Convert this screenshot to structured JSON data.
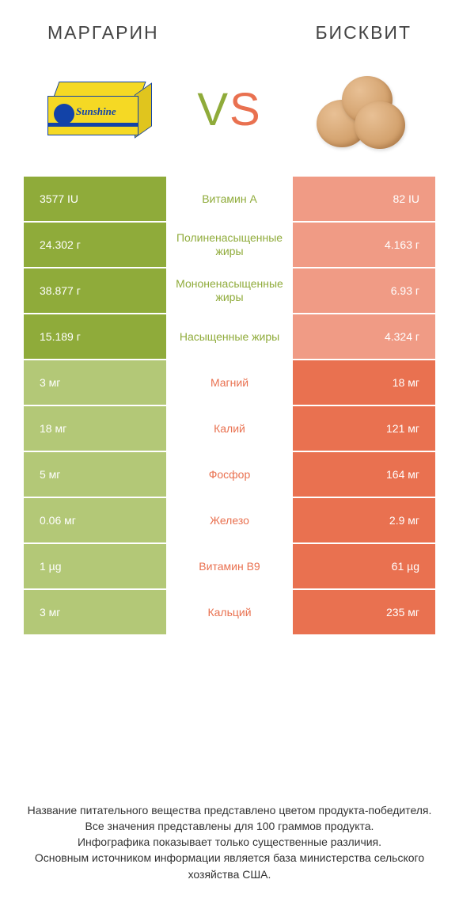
{
  "colors": {
    "green": "#8fab3a",
    "green_light": "#b3c877",
    "orange": "#e97150",
    "orange_light": "#f09b85",
    "label_green": "#8fab3a",
    "label_orange": "#e97150",
    "white": "#ffffff",
    "text": "#333333"
  },
  "header": {
    "left": "МАРГАРИН",
    "right": "БИСКВИТ"
  },
  "vs": {
    "v": "V",
    "s": "S"
  },
  "rows": [
    {
      "left": "3577 IU",
      "label": "Витамин A",
      "right": "82 IU",
      "winner": "left"
    },
    {
      "left": "24.302 г",
      "label": "Полиненасыщенные жиры",
      "right": "4.163 г",
      "winner": "left"
    },
    {
      "left": "38.877 г",
      "label": "Мононенасыщенные жиры",
      "right": "6.93 г",
      "winner": "left"
    },
    {
      "left": "15.189 г",
      "label": "Насыщенные жиры",
      "right": "4.324 г",
      "winner": "left"
    },
    {
      "left": "3 мг",
      "label": "Магний",
      "right": "18 мг",
      "winner": "right"
    },
    {
      "left": "18 мг",
      "label": "Калий",
      "right": "121 мг",
      "winner": "right"
    },
    {
      "left": "5 мг",
      "label": "Фосфор",
      "right": "164 мг",
      "winner": "right"
    },
    {
      "left": "0.06 мг",
      "label": "Железо",
      "right": "2.9 мг",
      "winner": "right"
    },
    {
      "left": "1 µg",
      "label": "Витамин B9",
      "right": "61 µg",
      "winner": "right"
    },
    {
      "left": "3 мг",
      "label": "Кальций",
      "right": "235 мг",
      "winner": "right"
    }
  ],
  "footer": {
    "l1": "Название питательного вещества представлено цветом продукта-победителя.",
    "l2": "Все значения представлены для 100 граммов продукта.",
    "l3": "Инфографика показывает только существенные различия.",
    "l4": "Основным источником информации является база министерства сельского хозяйства США."
  }
}
